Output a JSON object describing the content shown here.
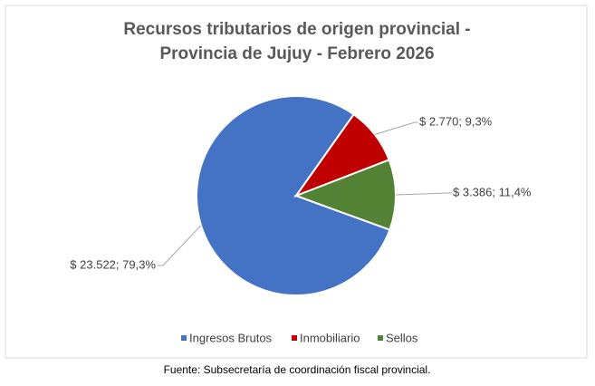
{
  "chart_data": {
    "type": "pie",
    "title": [
      "Recursos tributarios de origen provincial -",
      "Provincia de Jujuy - Febrero 2026"
    ],
    "categories": [
      "Ingresos Brutos",
      "Inmobiliario",
      "Sellos"
    ],
    "values": [
      23522,
      2770,
      3386
    ],
    "value_labels": [
      "$ 23.522; 79,3%",
      "$ 2.770; 9,3%",
      "$ 3.386; 11,4%"
    ],
    "colors": [
      "#4472c4",
      "#c00000",
      "#548235"
    ],
    "start_angle": 110,
    "legend": "bottom"
  },
  "footer": "Fuente: Subsecretaría de coordinación fiscal provincial."
}
